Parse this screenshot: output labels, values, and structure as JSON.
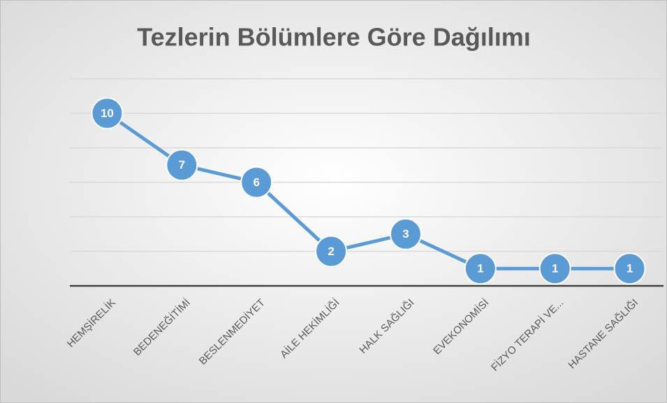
{
  "chart_data": {
    "type": "line",
    "title": "Tezlerin Bölümlere Göre Dağılımı",
    "categories": [
      "HEMŞİRELİK",
      "BEDENEĞİTİMİ",
      "BESLENMEDİYET",
      "AİLE HEKİMLİĞİ",
      "HALK SAĞLIĞI",
      "EVEKONOMİSİ",
      "FİZYO TERAPİ VE...",
      "HASTANE SAĞLIĞI"
    ],
    "values": [
      10,
      7,
      6,
      2,
      3,
      1,
      1,
      1
    ],
    "color": "#5b9bd5",
    "ylim": [
      0,
      12
    ],
    "yticks": [
      0,
      2,
      4,
      6,
      8,
      10,
      12
    ],
    "grid": true
  }
}
